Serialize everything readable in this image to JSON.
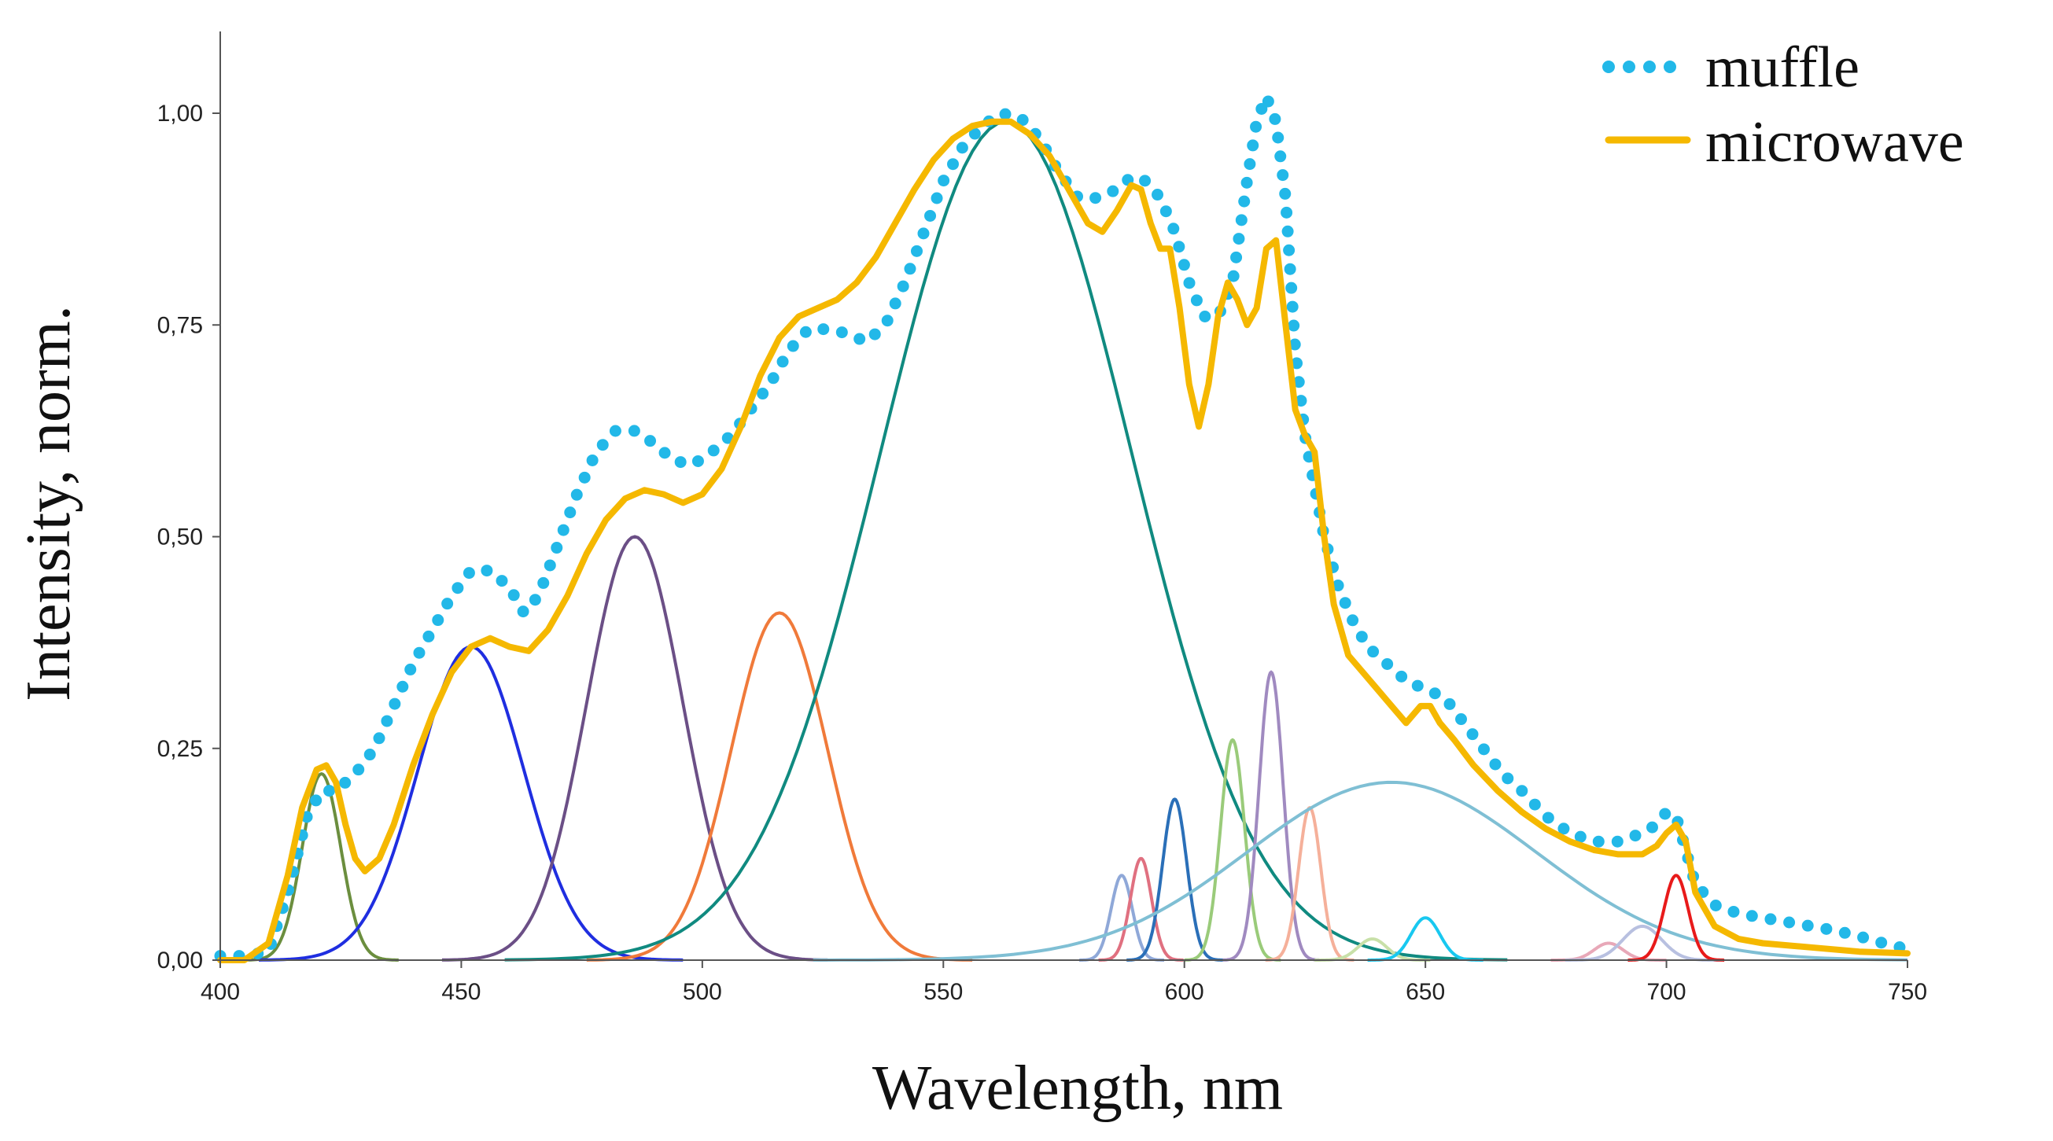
{
  "chart_data": {
    "type": "line",
    "title": "",
    "xlabel": "Wavelength, nm",
    "ylabel": "Intensity, norm.",
    "xlim": [
      400,
      750
    ],
    "ylim": [
      0,
      1.1
    ],
    "x_ticks": [
      400,
      450,
      500,
      550,
      600,
      650,
      700,
      750
    ],
    "x_tick_labels": [
      "400",
      "450",
      "500",
      "550",
      "600",
      "650",
      "700",
      "750"
    ],
    "y_ticks": [
      0,
      0.25,
      0.5,
      0.75,
      1.0
    ],
    "y_tick_labels": [
      "0,00",
      "0,25",
      "0,50",
      "0,75",
      "1,00"
    ],
    "legend_position": "top-right",
    "series": [
      {
        "name": "muffle",
        "style": "dotted",
        "color": "#22b8e8",
        "x": [
          400,
          405,
          410,
          414,
          418,
          421,
          424,
          428,
          432,
          436,
          440,
          444,
          448,
          452,
          456,
          460,
          463,
          466,
          470,
          474,
          478,
          482,
          486,
          490,
          494,
          498,
          502,
          506,
          510,
          514,
          518,
          522,
          526,
          530,
          534,
          538,
          542,
          546,
          550,
          554,
          558,
          562,
          566,
          570,
          574,
          578,
          582,
          586,
          589,
          592,
          595,
          598,
          601,
          604,
          607,
          610,
          613,
          615,
          617,
          619,
          621,
          623,
          625,
          627,
          629,
          632,
          635,
          638,
          642,
          646,
          650,
          654,
          658,
          662,
          666,
          670,
          675,
          680,
          685,
          690,
          695,
          698,
          700,
          702,
          704,
          706,
          710,
          715,
          720,
          725,
          730,
          735,
          740,
          745,
          750
        ],
        "values": [
          0.005,
          0.005,
          0.01,
          0.08,
          0.17,
          0.2,
          0.2,
          0.22,
          0.25,
          0.3,
          0.35,
          0.39,
          0.43,
          0.46,
          0.46,
          0.44,
          0.41,
          0.43,
          0.49,
          0.55,
          0.6,
          0.625,
          0.625,
          0.61,
          0.59,
          0.585,
          0.6,
          0.62,
          0.65,
          0.68,
          0.72,
          0.745,
          0.745,
          0.74,
          0.73,
          0.75,
          0.8,
          0.86,
          0.92,
          0.96,
          0.985,
          1.0,
          0.995,
          0.97,
          0.93,
          0.9,
          0.9,
          0.91,
          0.925,
          0.92,
          0.9,
          0.86,
          0.8,
          0.76,
          0.76,
          0.8,
          0.92,
          0.99,
          1.02,
          0.99,
          0.9,
          0.72,
          0.62,
          0.56,
          0.5,
          0.44,
          0.4,
          0.37,
          0.35,
          0.33,
          0.32,
          0.31,
          0.28,
          0.25,
          0.22,
          0.2,
          0.17,
          0.15,
          0.14,
          0.14,
          0.15,
          0.16,
          0.175,
          0.17,
          0.13,
          0.09,
          0.065,
          0.055,
          0.05,
          0.045,
          0.04,
          0.035,
          0.028,
          0.02,
          0.013
        ]
      },
      {
        "name": "microwave",
        "style": "solid",
        "color": "#f5b800",
        "x": [
          400,
          405,
          410,
          414,
          417,
          420,
          422,
          424,
          426,
          428,
          430,
          433,
          436,
          440,
          444,
          448,
          452,
          456,
          460,
          464,
          468,
          472,
          476,
          480,
          484,
          488,
          492,
          496,
          500,
          504,
          508,
          512,
          516,
          520,
          524,
          528,
          532,
          536,
          540,
          544,
          548,
          552,
          556,
          560,
          564,
          568,
          572,
          576,
          580,
          583,
          586,
          589,
          591,
          593,
          595,
          597,
          599,
          601,
          603,
          605,
          607,
          609,
          611,
          613,
          615,
          617,
          619,
          621,
          623,
          625,
          627,
          629,
          631,
          634,
          637,
          640,
          643,
          646,
          649,
          651,
          653,
          656,
          660,
          665,
          670,
          675,
          680,
          685,
          690,
          695,
          698,
          700,
          702,
          704,
          706,
          710,
          715,
          720,
          730,
          740,
          750
        ],
        "values": [
          0.0,
          0.0,
          0.02,
          0.1,
          0.18,
          0.225,
          0.23,
          0.21,
          0.16,
          0.12,
          0.105,
          0.12,
          0.16,
          0.23,
          0.29,
          0.34,
          0.37,
          0.38,
          0.37,
          0.365,
          0.39,
          0.43,
          0.48,
          0.52,
          0.545,
          0.555,
          0.55,
          0.54,
          0.55,
          0.58,
          0.63,
          0.69,
          0.735,
          0.76,
          0.77,
          0.78,
          0.8,
          0.83,
          0.87,
          0.91,
          0.945,
          0.97,
          0.985,
          0.99,
          0.99,
          0.975,
          0.95,
          0.91,
          0.87,
          0.86,
          0.885,
          0.915,
          0.91,
          0.87,
          0.84,
          0.84,
          0.77,
          0.68,
          0.63,
          0.68,
          0.76,
          0.8,
          0.78,
          0.75,
          0.77,
          0.84,
          0.85,
          0.75,
          0.65,
          0.62,
          0.6,
          0.5,
          0.42,
          0.36,
          0.34,
          0.32,
          0.3,
          0.28,
          0.3,
          0.3,
          0.28,
          0.26,
          0.23,
          0.2,
          0.175,
          0.155,
          0.14,
          0.13,
          0.125,
          0.125,
          0.135,
          0.15,
          0.16,
          0.14,
          0.08,
          0.04,
          0.025,
          0.02,
          0.015,
          0.01,
          0.008
        ]
      }
    ],
    "fitted_components": [
      {
        "center": 421,
        "height": 0.22,
        "sigma": 4,
        "color": "#6b8e3e"
      },
      {
        "center": 452,
        "height": 0.37,
        "sigma": 11,
        "color": "#1f2ee0"
      },
      {
        "center": 486,
        "height": 0.5,
        "sigma": 10,
        "color": "#6b4f86"
      },
      {
        "center": 516,
        "height": 0.41,
        "sigma": 10,
        "color": "#f07a3a"
      },
      {
        "center": 563,
        "height": 0.99,
        "sigma": 26,
        "color": "#108a80"
      },
      {
        "center": 587,
        "height": 0.1,
        "sigma": 2.2,
        "color": "#8fa8d8"
      },
      {
        "center": 591,
        "height": 0.12,
        "sigma": 2.2,
        "color": "#e07080"
      },
      {
        "center": 598,
        "height": 0.19,
        "sigma": 2.5,
        "color": "#2a6fb8"
      },
      {
        "center": 610,
        "height": 0.26,
        "sigma": 2.5,
        "color": "#9acb7a"
      },
      {
        "center": 618,
        "height": 0.34,
        "sigma": 2.5,
        "color": "#a08ac0"
      },
      {
        "center": 626,
        "height": 0.18,
        "sigma": 2.3,
        "color": "#f5b09a"
      },
      {
        "center": 643,
        "height": 0.21,
        "sigma": 30,
        "color": "#7fbfd4"
      },
      {
        "center": 639,
        "height": 0.025,
        "sigma": 3,
        "color": "#c8e0a8"
      },
      {
        "center": 650,
        "height": 0.05,
        "sigma": 3,
        "color": "#18c8f0"
      },
      {
        "center": 688,
        "height": 0.02,
        "sigma": 3,
        "color": "#e8a8b8"
      },
      {
        "center": 695,
        "height": 0.04,
        "sigma": 4,
        "color": "#b8c0e0"
      },
      {
        "center": 702,
        "height": 0.1,
        "sigma": 2.5,
        "color": "#e81a1a"
      }
    ]
  },
  "legend": {
    "muffle_label": "muffle",
    "microwave_label": "microwave"
  }
}
